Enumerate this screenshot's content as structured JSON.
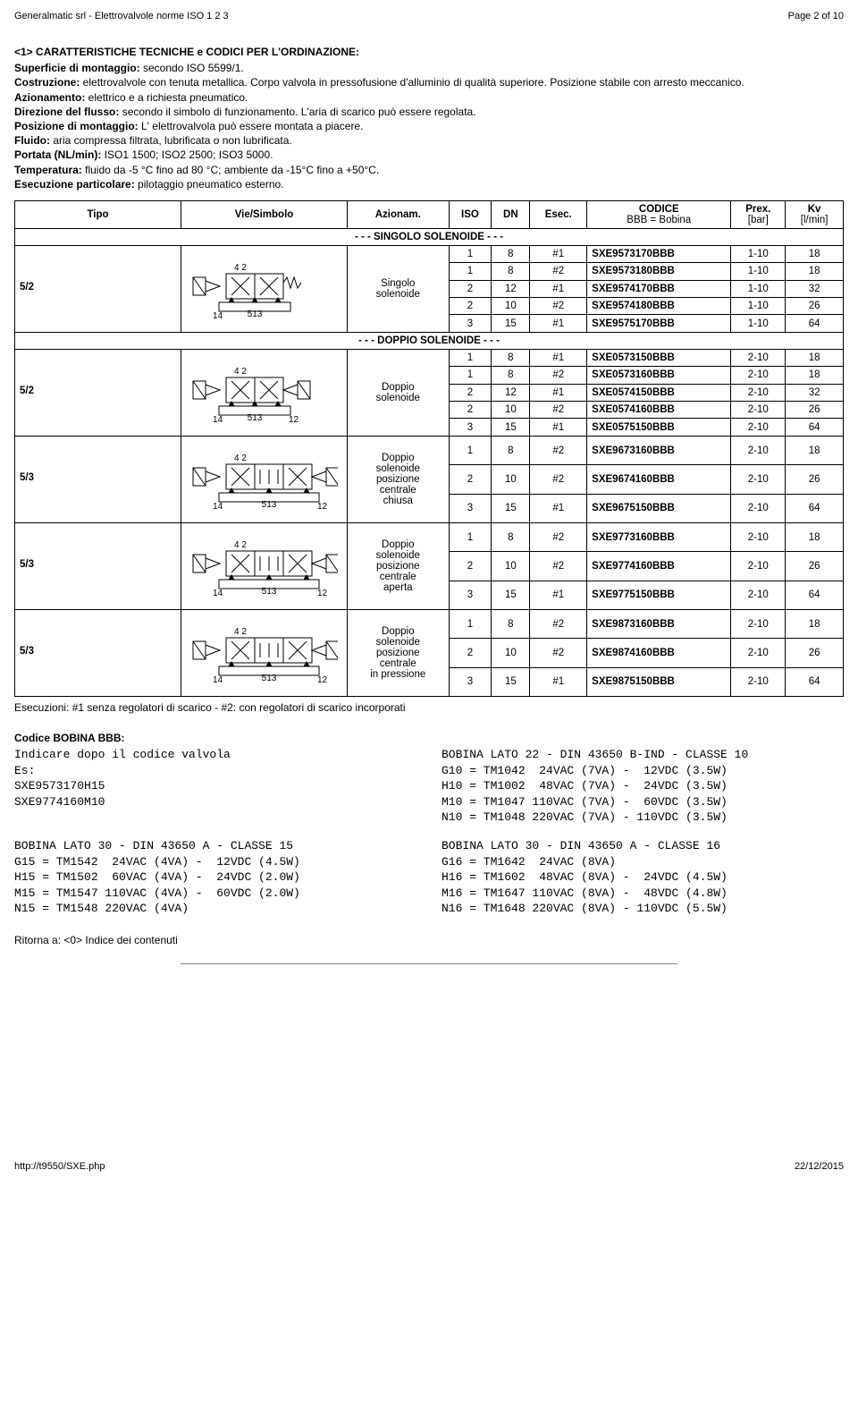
{
  "header": {
    "left": "Generalmatic srl - Elettrovalvole norme ISO 1 2 3",
    "right": "Page 2 of 10"
  },
  "title": "<1> CARATTERISTICHE TECNICHE e CODICI PER L'ORDINAZIONE:",
  "intro": {
    "items": [
      {
        "label": "Superficie di montaggio:",
        "text": " secondo ISO 5599/1."
      },
      {
        "label": "Costruzione:",
        "text": " elettrovalvole con tenuta metallica. Corpo valvola in pressofusione d'alluminio di qualità superiore. Posizione stabile con arresto meccanico."
      },
      {
        "label": "Azionamento:",
        "text": " elettrico e a richiesta pneumatico."
      },
      {
        "label": "Direzione del flusso:",
        "text": " secondo il simbolo di funzionamento. L'aria di scarico può essere regolata."
      },
      {
        "label": "Posizione di montaggio:",
        "text": " L' elettrovalvola può essere montata a piacere."
      },
      {
        "label": "Fluido:",
        "text": " aria compressa filtrata, lubrificata o non lubrificata."
      },
      {
        "label": "Portata (NL/min):",
        "text": " ISO1 1500; ISO2 2500; ISO3 5000."
      },
      {
        "label": "Temperatura:",
        "text": " fluido da -5 °C fino ad 80 °C; ambiente da -15°C fino a +50°C."
      },
      {
        "label": "Esecuzione particolare:",
        "text": " pilotaggio pneumatico esterno."
      }
    ]
  },
  "table": {
    "head": {
      "tipo": "Tipo",
      "vie": "Vie/Simbolo",
      "azionam": "Azionam.",
      "iso": "ISO",
      "dn": "DN",
      "esec": "Esec.",
      "codice": "CODICE",
      "codice_sub": "BBB = Bobina",
      "prex": "Prex.",
      "prex_sub": "[bar]",
      "kv": "Kv",
      "kv_sub": "[l/min]"
    },
    "sub_singolo": "- - - SINGOLO SOLENOIDE - - -",
    "sub_doppio": "- - - DOPPIO SOLENOIDE - - -",
    "blocks": [
      {
        "tipo": "5/2",
        "az1": "Singolo\nsolenoide",
        "rows": [
          [
            "1",
            "8",
            "#1",
            "SXE9573170BBB",
            "1-10",
            "18"
          ],
          [
            "1",
            "8",
            "#2",
            "SXE9573180BBB",
            "1-10",
            "18"
          ],
          [
            "2",
            "12",
            "#1",
            "SXE9574170BBB",
            "1-10",
            "32"
          ],
          [
            "2",
            "10",
            "#2",
            "SXE9574180BBB",
            "1-10",
            "26"
          ],
          [
            "3",
            "15",
            "#1",
            "SXE9575170BBB",
            "1-10",
            "64"
          ]
        ]
      },
      {
        "tipo": "5/2",
        "az1": "Doppio\nsolenoide",
        "rows": [
          [
            "1",
            "8",
            "#1",
            "SXE0573150BBB",
            "2-10",
            "18"
          ],
          [
            "1",
            "8",
            "#2",
            "SXE0573160BBB",
            "2-10",
            "18"
          ],
          [
            "2",
            "12",
            "#1",
            "SXE0574150BBB",
            "2-10",
            "32"
          ],
          [
            "2",
            "10",
            "#2",
            "SXE0574160BBB",
            "2-10",
            "26"
          ],
          [
            "3",
            "15",
            "#1",
            "SXE0575150BBB",
            "2-10",
            "64"
          ]
        ]
      },
      {
        "tipo": "5/3",
        "az1": "Doppio\nsolenoide\nposizione\ncentrale\nchiusa",
        "rows": [
          [
            "1",
            "8",
            "#2",
            "SXE9673160BBB",
            "2-10",
            "18"
          ],
          [
            "2",
            "10",
            "#2",
            "SXE9674160BBB",
            "2-10",
            "26"
          ],
          [
            "3",
            "15",
            "#1",
            "SXE9675150BBB",
            "2-10",
            "64"
          ]
        ]
      },
      {
        "tipo": "5/3",
        "az1": "Doppio\nsolenoide\nposizione\ncentrale\naperta",
        "rows": [
          [
            "1",
            "8",
            "#2",
            "SXE9773160BBB",
            "2-10",
            "18"
          ],
          [
            "2",
            "10",
            "#2",
            "SXE9774160BBB",
            "2-10",
            "26"
          ],
          [
            "3",
            "15",
            "#1",
            "SXE9775150BBB",
            "2-10",
            "64"
          ]
        ]
      },
      {
        "tipo": "5/3",
        "az1": "Doppio\nsolenoide\nposizione\ncentrale\nin pressione",
        "rows": [
          [
            "1",
            "8",
            "#2",
            "SXE9873160BBB",
            "2-10",
            "18"
          ],
          [
            "2",
            "10",
            "#2",
            "SXE9874160BBB",
            "2-10",
            "26"
          ],
          [
            "3",
            "15",
            "#1",
            "SXE9875150BBB",
            "2-10",
            "64"
          ]
        ]
      }
    ]
  },
  "esecuzioni": "Esecuzioni: #1 senza regolatori di scarico - #2: con regolatori di scarico incorporati",
  "bobina": {
    "title": "Codice BOBINA BBB:",
    "left_top": "Indicare dopo il codice valvola\nEs:\nSXE9573170H15\nSXE9774160M10",
    "right_top": "BOBINA LATO 22 - DIN 43650 B-IND - CLASSE 10\nG10 = TM1042  24VAC (7VA) -  12VDC (3.5W)\nH10 = TM1002  48VAC (7VA) -  24VDC (3.5W)\nM10 = TM1047 110VAC (7VA) -  60VDC (3.5W)\nN10 = TM1048 220VAC (7VA) - 110VDC (3.5W)",
    "left_bot": "BOBINA LATO 30 - DIN 43650 A - CLASSE 15\nG15 = TM1542  24VAC (4VA) -  12VDC (4.5W)\nH15 = TM1502  60VAC (4VA) -  24VDC (2.0W)\nM15 = TM1547 110VAC (4VA) -  60VDC (2.0W)\nN15 = TM1548 220VAC (4VA)",
    "right_bot": "BOBINA LATO 30 - DIN 43650 A - CLASSE 16\nG16 = TM1642  24VAC (8VA)\nH16 = TM1602  48VAC (8VA) -  24VDC (4.5W)\nM16 = TM1647 110VAC (8VA) -  48VDC (4.8W)\nN16 = TM1648 220VAC (8VA) - 110VDC (5.5W)"
  },
  "return_link": "Ritorna a: <0> Indice dei contenuti",
  "footer": {
    "left": "http://t9550/SXE.php",
    "right": "22/12/2015"
  },
  "diagram_style": {
    "stroke": "#000000",
    "stroke_width": 1,
    "label_fontsize": 10,
    "label_font": "Arial"
  }
}
